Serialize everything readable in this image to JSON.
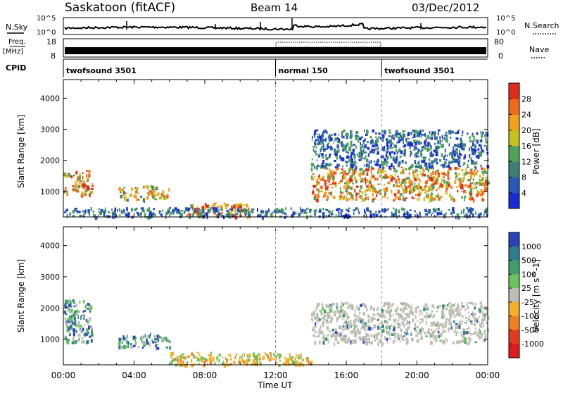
{
  "header": {
    "station": "Saskatoon (fitACF)",
    "beam": "Beam 14",
    "date": "03/Dec/2012"
  },
  "strip": {
    "nsky_label": "N.Sky",
    "nsky_ticks": [
      "10^5",
      "10^0"
    ],
    "nsearch_label": "N.Search",
    "nsearch_ticks": [
      "10^5",
      "10^0"
    ],
    "freq_label": "Freq.",
    "freq_unit": "[MHz]",
    "freq_ticks": [
      "18",
      "8"
    ],
    "nave_label": "Nave",
    "nave_ticks": [
      "80",
      "0"
    ],
    "cpid_label": "CPID",
    "cpid_segments": [
      {
        "label": "twofsound 3501",
        "start_hour": 0,
        "end_hour": 12
      },
      {
        "label": "normal 150",
        "start_hour": 12,
        "end_hour": 18
      },
      {
        "label": "twofsound 3501",
        "start_hour": 18,
        "end_hour": 24
      }
    ]
  },
  "colorbars": {
    "power": {
      "title": "Power [dB]",
      "ticks": [
        "4",
        "8",
        "12",
        "16",
        "20",
        "24",
        "28"
      ],
      "colors": [
        "#1b2bd6",
        "#2858b8",
        "#3c7f73",
        "#4fa35a",
        "#c7c11f",
        "#f1a11a",
        "#f06a1c",
        "#e22b1a"
      ]
    },
    "velocity": {
      "title": "Velocity [m s^-1]",
      "ticks": [
        "1000",
        "500",
        "100",
        "25",
        "-25",
        "-100",
        "-500",
        "-1000"
      ],
      "colors": [
        "#2a42b8",
        "#2f7d8c",
        "#3f9e6a",
        "#6cc35b",
        "#bdbdb4",
        "#f3b12a",
        "#f0801f",
        "#e33a1e",
        "#e01a1a"
      ]
    }
  },
  "chart_data": [
    {
      "type": "heatmap",
      "panel": "power",
      "xlabel": "Time UT",
      "ylabel": "Slant Range [km]",
      "x_unit": "hour UT",
      "xlim": [
        0,
        24
      ],
      "ylim": [
        180,
        4600
      ],
      "x_ticks": [
        "00:00",
        "04:00",
        "08:00",
        "12:00",
        "16:00",
        "20:00",
        "00:00"
      ],
      "y_ticks": [
        1000,
        2000,
        3000,
        4000
      ],
      "vlines_hours": [
        12,
        18
      ],
      "regions": [
        {
          "t_start": 0.0,
          "t_end": 1.6,
          "r_start": 900,
          "r_end": 1700,
          "level": "high"
        },
        {
          "t_start": 3.0,
          "t_end": 6.0,
          "r_start": 750,
          "r_end": 1200,
          "level": "mid"
        },
        {
          "t_start": 7.0,
          "t_end": 10.5,
          "r_start": 200,
          "r_end": 650,
          "level": "high"
        },
        {
          "t_start": 14.0,
          "t_end": 24.0,
          "r_start": 750,
          "r_end": 1800,
          "level": "high"
        },
        {
          "t_start": 14.0,
          "t_end": 24.0,
          "r_start": 1800,
          "r_end": 3000,
          "level": "low"
        },
        {
          "t_start": 0.0,
          "t_end": 24.0,
          "r_start": 200,
          "r_end": 500,
          "level": "low"
        }
      ]
    },
    {
      "type": "heatmap",
      "panel": "velocity",
      "xlabel": "Time UT",
      "ylabel": "Slant Range [km]",
      "x_unit": "hour UT",
      "xlim": [
        0,
        24
      ],
      "ylim": [
        180,
        4600
      ],
      "x_ticks": [
        "00:00",
        "04:00",
        "08:00",
        "12:00",
        "16:00",
        "20:00",
        "00:00"
      ],
      "y_ticks": [
        1000,
        2000,
        3000,
        4000
      ],
      "vlines_hours": [
        12,
        18
      ],
      "regions": [
        {
          "t_start": 0.0,
          "t_end": 1.6,
          "r_start": 900,
          "r_end": 2300,
          "level": "mixed"
        },
        {
          "t_start": 3.0,
          "t_end": 6.0,
          "r_start": 750,
          "r_end": 1200,
          "level": "mixed"
        },
        {
          "t_start": 6.0,
          "t_end": 14.0,
          "r_start": 200,
          "r_end": 600,
          "level": "negative"
        },
        {
          "t_start": 14.0,
          "t_end": 24.0,
          "r_start": 900,
          "r_end": 2200,
          "level": "near-zero"
        }
      ]
    }
  ],
  "xaxis": {
    "ticks": [
      "00:00",
      "04:00",
      "08:00",
      "12:00",
      "16:00",
      "20:00",
      "00:00"
    ],
    "label": "Time UT"
  },
  "yaxis": {
    "ticks": [
      "1000",
      "2000",
      "3000",
      "4000"
    ],
    "label": "Slant Range [km]"
  }
}
